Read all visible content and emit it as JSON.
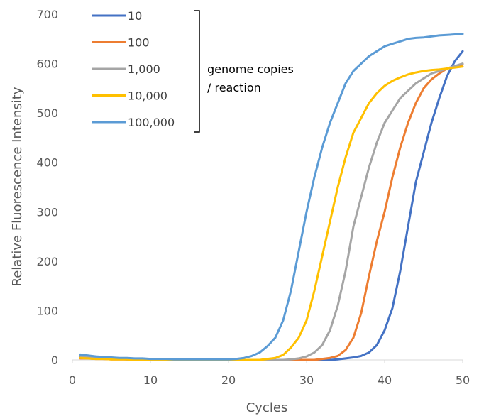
{
  "chart_data": {
    "type": "line",
    "xlabel": "Cycles",
    "ylabel": "Relative Fluorescence Intensity",
    "xlim": [
      0,
      50
    ],
    "ylim": [
      0,
      700
    ],
    "xticks": [
      0,
      10,
      20,
      30,
      40,
      50
    ],
    "yticks": [
      0,
      100,
      200,
      300,
      400,
      500,
      600,
      700
    ],
    "grid": false,
    "legend_position": "top-left",
    "legend_note_lines": [
      "genome copies",
      "/ reaction"
    ],
    "x": [
      1,
      2,
      3,
      4,
      5,
      6,
      7,
      8,
      9,
      10,
      11,
      12,
      13,
      14,
      15,
      16,
      17,
      18,
      19,
      20,
      21,
      22,
      23,
      24,
      25,
      26,
      27,
      28,
      29,
      30,
      31,
      32,
      33,
      34,
      35,
      36,
      37,
      38,
      39,
      40,
      41,
      42,
      43,
      44,
      45,
      46,
      47,
      48,
      49,
      50
    ],
    "series": [
      {
        "name": "10",
        "color": "#4472C4",
        "values": [
          5,
          4,
          3,
          2,
          2,
          2,
          1,
          1,
          1,
          1,
          0,
          0,
          0,
          0,
          0,
          0,
          0,
          0,
          0,
          0,
          0,
          0,
          0,
          0,
          0,
          0,
          0,
          0,
          0,
          0,
          0,
          0,
          0,
          1,
          3,
          5,
          8,
          15,
          30,
          60,
          105,
          180,
          270,
          360,
          420,
          480,
          530,
          575,
          605,
          625
        ]
      },
      {
        "name": "100",
        "color": "#ED7D31",
        "values": [
          3,
          3,
          2,
          2,
          1,
          1,
          1,
          1,
          1,
          0,
          0,
          0,
          0,
          0,
          0,
          0,
          0,
          0,
          0,
          0,
          0,
          0,
          0,
          0,
          0,
          0,
          0,
          0,
          0,
          0,
          0,
          2,
          4,
          8,
          20,
          45,
          95,
          170,
          240,
          300,
          370,
          430,
          480,
          520,
          550,
          568,
          580,
          590,
          595,
          598
        ]
      },
      {
        "name": "1,000",
        "color": "#A5A5A5",
        "values": [
          8,
          6,
          4,
          3,
          3,
          2,
          2,
          1,
          1,
          1,
          1,
          1,
          0,
          0,
          0,
          0,
          0,
          0,
          0,
          0,
          0,
          0,
          0,
          0,
          0,
          0,
          0,
          1,
          3,
          7,
          15,
          30,
          60,
          110,
          180,
          270,
          330,
          390,
          440,
          480,
          505,
          530,
          545,
          560,
          570,
          580,
          585,
          590,
          595,
          600
        ]
      },
      {
        "name": "10,000",
        "color": "#FFC000",
        "values": [
          4,
          3,
          2,
          2,
          1,
          1,
          1,
          0,
          0,
          0,
          0,
          0,
          0,
          0,
          0,
          0,
          0,
          0,
          0,
          0,
          0,
          0,
          0,
          0,
          2,
          4,
          10,
          25,
          45,
          80,
          140,
          210,
          280,
          350,
          410,
          460,
          490,
          520,
          540,
          555,
          565,
          572,
          578,
          582,
          585,
          587,
          588,
          590,
          592,
          594
        ]
      },
      {
        "name": "100,000",
        "color": "#5B9BD5",
        "values": [
          11,
          9,
          7,
          6,
          5,
          4,
          4,
          3,
          3,
          2,
          2,
          2,
          1,
          1,
          1,
          1,
          1,
          1,
          1,
          1,
          2,
          4,
          8,
          15,
          28,
          45,
          80,
          140,
          220,
          300,
          370,
          430,
          480,
          520,
          560,
          585,
          600,
          615,
          625,
          635,
          640,
          645,
          650,
          652,
          653,
          655,
          657,
          658,
          659,
          660
        ]
      }
    ]
  }
}
